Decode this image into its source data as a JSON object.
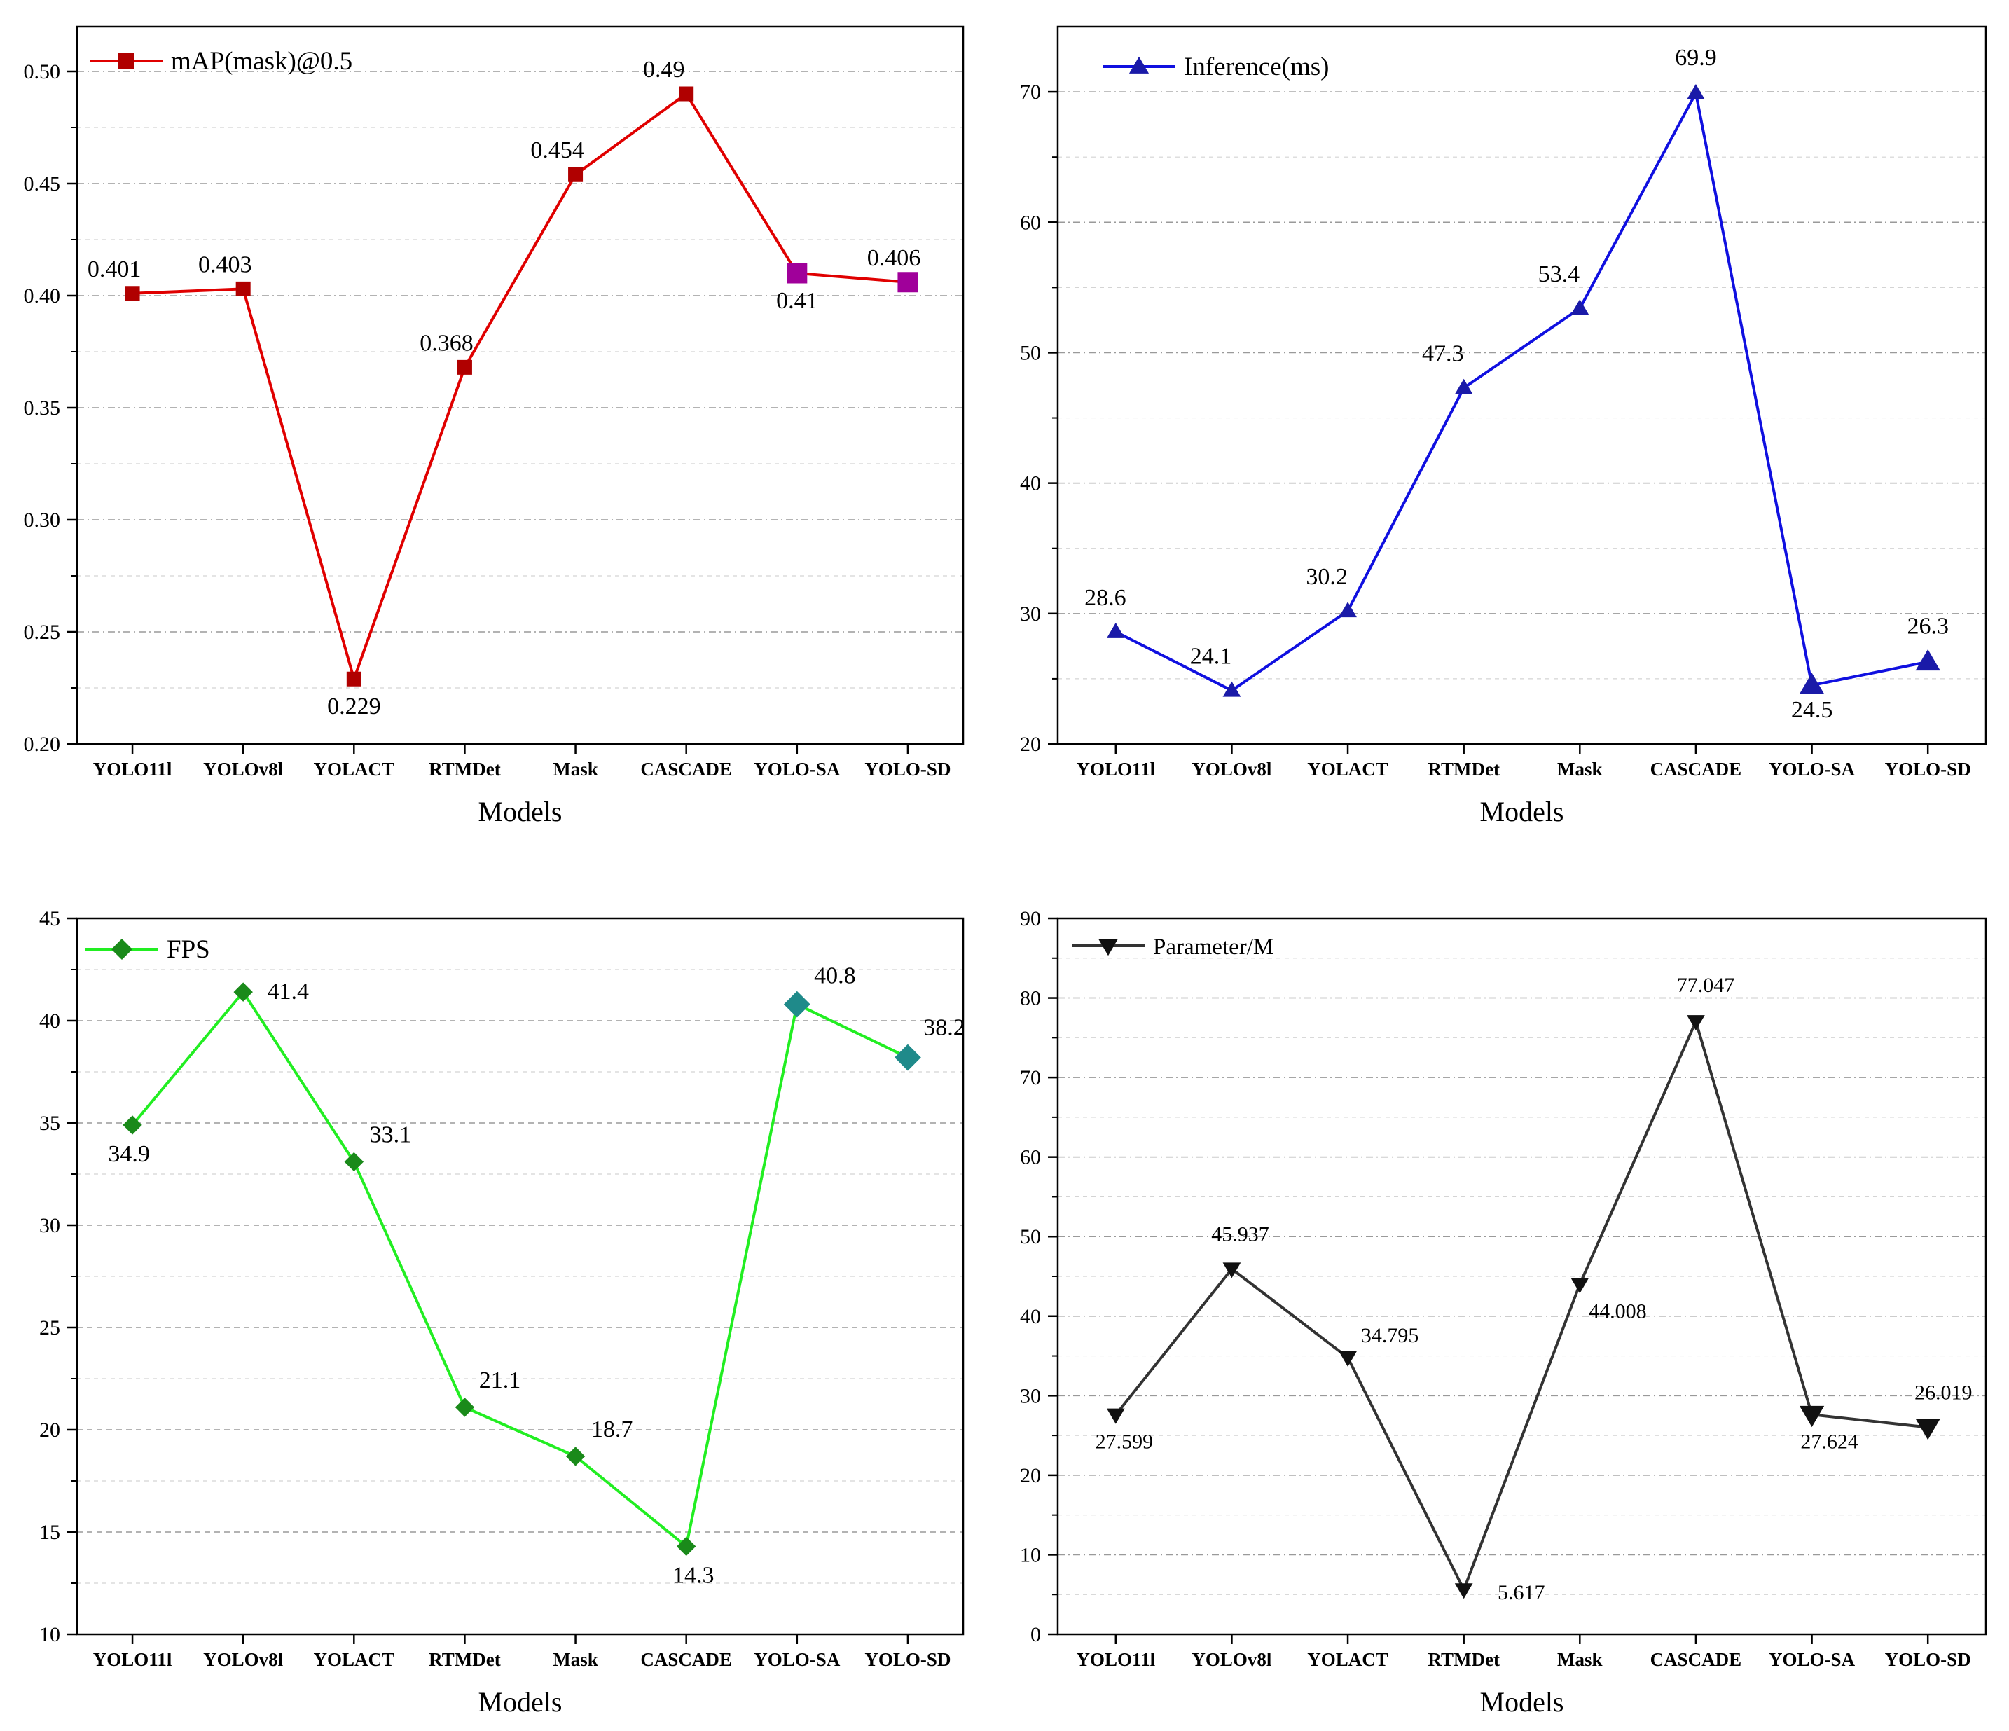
{
  "chart_data": [
    {
      "type": "line",
      "categories": [
        "YOLO11l",
        "YOLOv8l",
        "YOLACT",
        "RTMDet",
        "Mask",
        "CASCADE",
        "YOLO-SA",
        "YOLO-SD"
      ],
      "series": [
        {
          "name": "mAP(mask)@0.5",
          "values": [
            0.401,
            0.403,
            0.229,
            0.368,
            0.454,
            0.49,
            0.41,
            0.406
          ]
        }
      ],
      "labels": [
        "0.401",
        "0.403",
        "0.229",
        "0.368",
        "0.454",
        "0.49",
        "0.41",
        "0.406"
      ],
      "yticks": [
        "0.20",
        "0.25",
        "0.30",
        "0.35",
        "0.40",
        "0.45",
        "0.50"
      ],
      "ylim": [
        0.2,
        0.52
      ],
      "xlabel": "Models",
      "ylabel": "",
      "marker": "square",
      "line_color": "#e00000",
      "marker_color": "#b00000",
      "highlight_color": "#a0009a",
      "highlight_indices": [
        6,
        7
      ],
      "grid": true,
      "legend_position": "top-left"
    },
    {
      "type": "line",
      "categories": [
        "YOLO11l",
        "YOLOv8l",
        "YOLACT",
        "RTMDet",
        "Mask",
        "CASCADE",
        "YOLO-SA",
        "YOLO-SD"
      ],
      "series": [
        {
          "name": "Inference(ms)",
          "values": [
            28.6,
            24.1,
            30.2,
            47.3,
            53.4,
            69.9,
            24.5,
            26.3
          ]
        }
      ],
      "labels": [
        "28.6",
        "24.1",
        "30.2",
        "47.3",
        "53.4",
        "69.9",
        "24.5",
        "26.3"
      ],
      "yticks": [
        "20",
        "30",
        "40",
        "50",
        "60",
        "70"
      ],
      "ylim": [
        20,
        75
      ],
      "xlabel": "Models",
      "ylabel": "",
      "marker": "triangle-up",
      "line_color": "#1010e0",
      "marker_color": "#1a1aa8",
      "highlight_color": "#1a1aa8",
      "highlight_indices": [
        6,
        7
      ],
      "grid": true,
      "legend_position": "top-left"
    },
    {
      "type": "line",
      "categories": [
        "YOLO11l",
        "YOLOv8l",
        "YOLACT",
        "RTMDet",
        "Mask",
        "CASCADE",
        "YOLO-SA",
        "YOLO-SD"
      ],
      "series": [
        {
          "name": "FPS",
          "values": [
            34.9,
            41.4,
            33.1,
            21.1,
            18.7,
            14.3,
            40.8,
            38.2
          ]
        }
      ],
      "labels": [
        "34.9",
        "41.4",
        "33.1",
        "21.1",
        "18.7",
        "14.3",
        "40.8",
        "38.2"
      ],
      "yticks": [
        "10",
        "15",
        "20",
        "25",
        "30",
        "35",
        "40",
        "45"
      ],
      "ylim": [
        10,
        45
      ],
      "xlabel": "Models",
      "ylabel": "",
      "marker": "diamond",
      "line_color": "#22ee22",
      "marker_color": "#1a8a1a",
      "highlight_color": "#1f8a8a",
      "highlight_indices": [
        6,
        7
      ],
      "grid": true,
      "legend_position": "top-left"
    },
    {
      "type": "line",
      "categories": [
        "YOLO11l",
        "YOLOv8l",
        "YOLACT",
        "RTMDet",
        "Mask",
        "CASCADE",
        "YOLO-SA",
        "YOLO-SD"
      ],
      "series": [
        {
          "name": "Parameter/M",
          "values": [
            27.599,
            45.937,
            34.795,
            5.617,
            44.008,
            77.047,
            27.624,
            26.019
          ]
        }
      ],
      "labels": [
        "27.599",
        "45.937",
        "34.795",
        "5.617",
        "44.008",
        "77.047",
        "27.624",
        "26.019"
      ],
      "yticks": [
        "0",
        "10",
        "20",
        "30",
        "40",
        "50",
        "60",
        "70",
        "80",
        "90"
      ],
      "ylim": [
        0,
        90
      ],
      "xlabel": "Models",
      "ylabel": "",
      "marker": "triangle-down",
      "line_color": "#333333",
      "marker_color": "#111111",
      "highlight_color": "#111111",
      "highlight_indices": [
        6,
        7
      ],
      "grid": true,
      "legend_position": "top-left"
    }
  ]
}
